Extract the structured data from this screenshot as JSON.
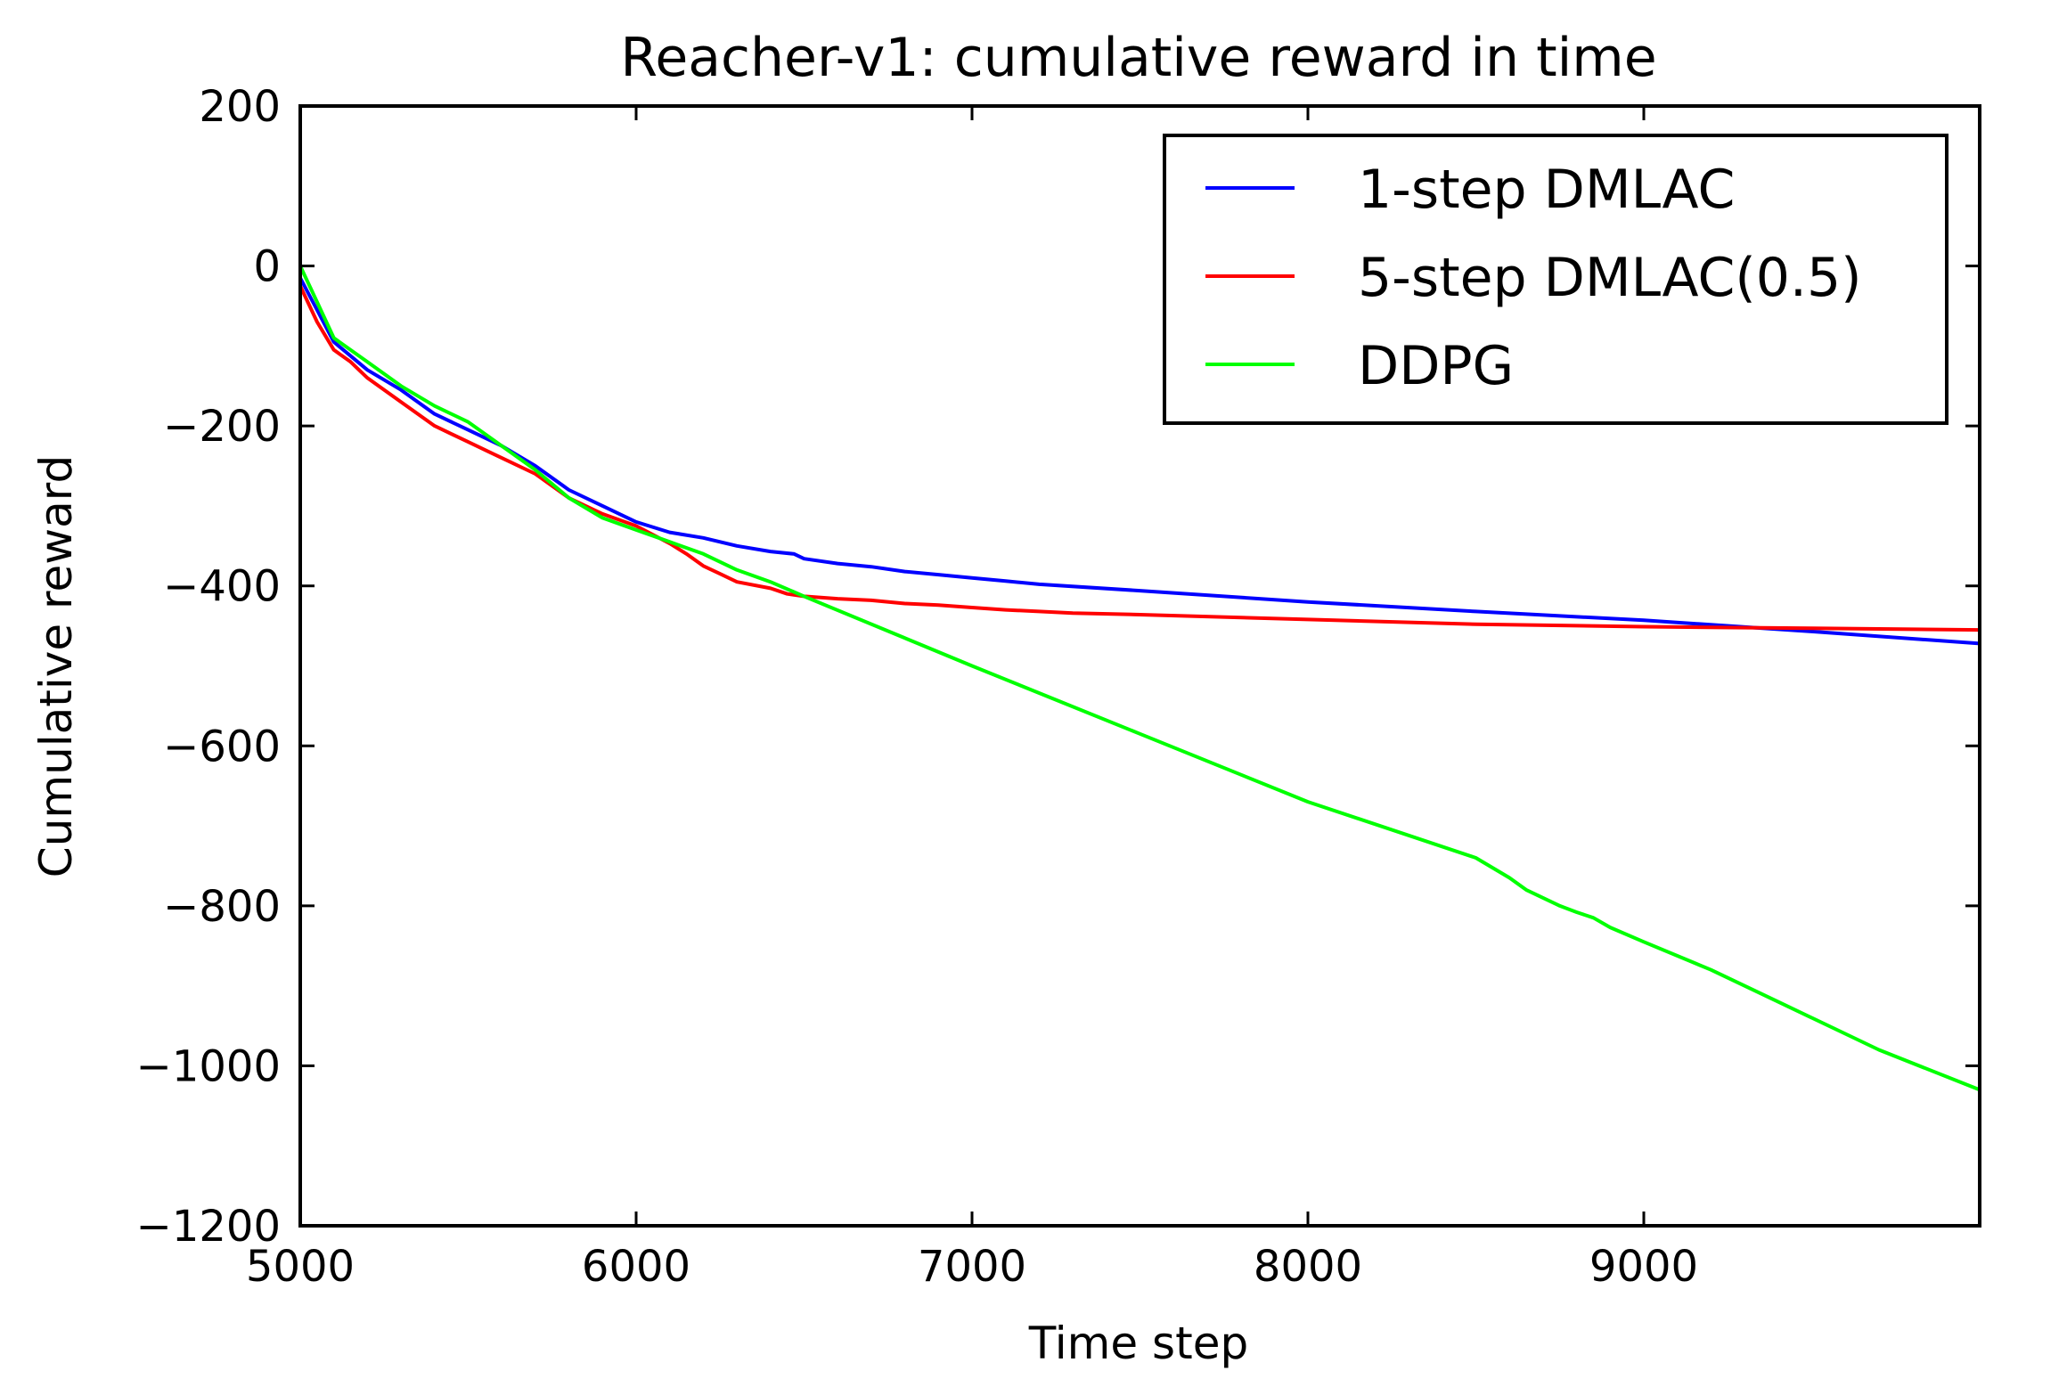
{
  "chart_data": {
    "type": "line",
    "title": "Reacher-v1: cumulative reward in time",
    "xlabel": "Time step",
    "ylabel": "Cumulative reward",
    "xlim": [
      5000,
      10000
    ],
    "ylim": [
      -1200,
      200
    ],
    "xticks": [
      5000,
      6000,
      7000,
      8000,
      9000
    ],
    "yticks": [
      200,
      0,
      -200,
      -400,
      -600,
      -800,
      -1000,
      -1200
    ],
    "xtick_labels": [
      "5000",
      "6000",
      "7000",
      "8000",
      "9000"
    ],
    "ytick_labels": [
      "200",
      "0",
      "−200",
      "−400",
      "−600",
      "−800",
      "−1000",
      "−1200"
    ],
    "grid": false,
    "legend_position": "top-right",
    "series": [
      {
        "name": "1-step DMLAC",
        "color": "#0000ff",
        "x": [
          5000,
          5050,
          5100,
          5200,
          5300,
          5400,
          5500,
          5600,
          5700,
          5800,
          5900,
          6000,
          6100,
          6200,
          6300,
          6400,
          6470,
          6500,
          6600,
          6700,
          6800,
          6900,
          7000,
          7100,
          7200,
          7500,
          8000,
          8500,
          9000,
          9500,
          10000
        ],
        "y": [
          -15,
          -55,
          -95,
          -130,
          -155,
          -185,
          -205,
          -225,
          -250,
          -280,
          -300,
          -320,
          -333,
          -340,
          -350,
          -357,
          -360,
          -366,
          -372,
          -376,
          -382,
          -386,
          -390,
          -394,
          -398,
          -406,
          -420,
          -432,
          -443,
          -457,
          -472
        ]
      },
      {
        "name": "5-step DMLAC(0.5)",
        "color": "#ff0000",
        "x": [
          5000,
          5050,
          5100,
          5150,
          5200,
          5300,
          5400,
          5500,
          5600,
          5700,
          5800,
          5900,
          6000,
          6100,
          6150,
          6200,
          6250,
          6300,
          6400,
          6450,
          6500,
          6600,
          6700,
          6800,
          6900,
          7000,
          7100,
          7200,
          7300,
          7500,
          8000,
          8500,
          9000,
          9500,
          10000
        ],
        "y": [
          -25,
          -70,
          -105,
          -120,
          -140,
          -170,
          -200,
          -220,
          -240,
          -260,
          -290,
          -310,
          -325,
          -347,
          -360,
          -375,
          -385,
          -395,
          -403,
          -410,
          -413,
          -416,
          -418,
          -422,
          -424,
          -427,
          -430,
          -432,
          -434,
          -436,
          -442,
          -448,
          -451,
          -453,
          -455
        ]
      },
      {
        "name": "DDPG",
        "color": "#00ff00",
        "x": [
          5000,
          5050,
          5100,
          5200,
          5300,
          5400,
          5500,
          5600,
          5700,
          5800,
          5900,
          6000,
          6100,
          6200,
          6300,
          6400,
          6500,
          7000,
          7500,
          8000,
          8500,
          8600,
          8650,
          8700,
          8750,
          8800,
          8850,
          8900,
          9000,
          9200,
          9400,
          9600,
          9700,
          10000
        ],
        "y": [
          0,
          -45,
          -90,
          -120,
          -150,
          -175,
          -195,
          -225,
          -255,
          -290,
          -315,
          -330,
          -345,
          -360,
          -380,
          -395,
          -413,
          -500,
          -585,
          -670,
          -740,
          -765,
          -780,
          -790,
          -800,
          -808,
          -815,
          -827,
          -845,
          -880,
          -920,
          -960,
          -980,
          -1030
        ]
      }
    ]
  }
}
